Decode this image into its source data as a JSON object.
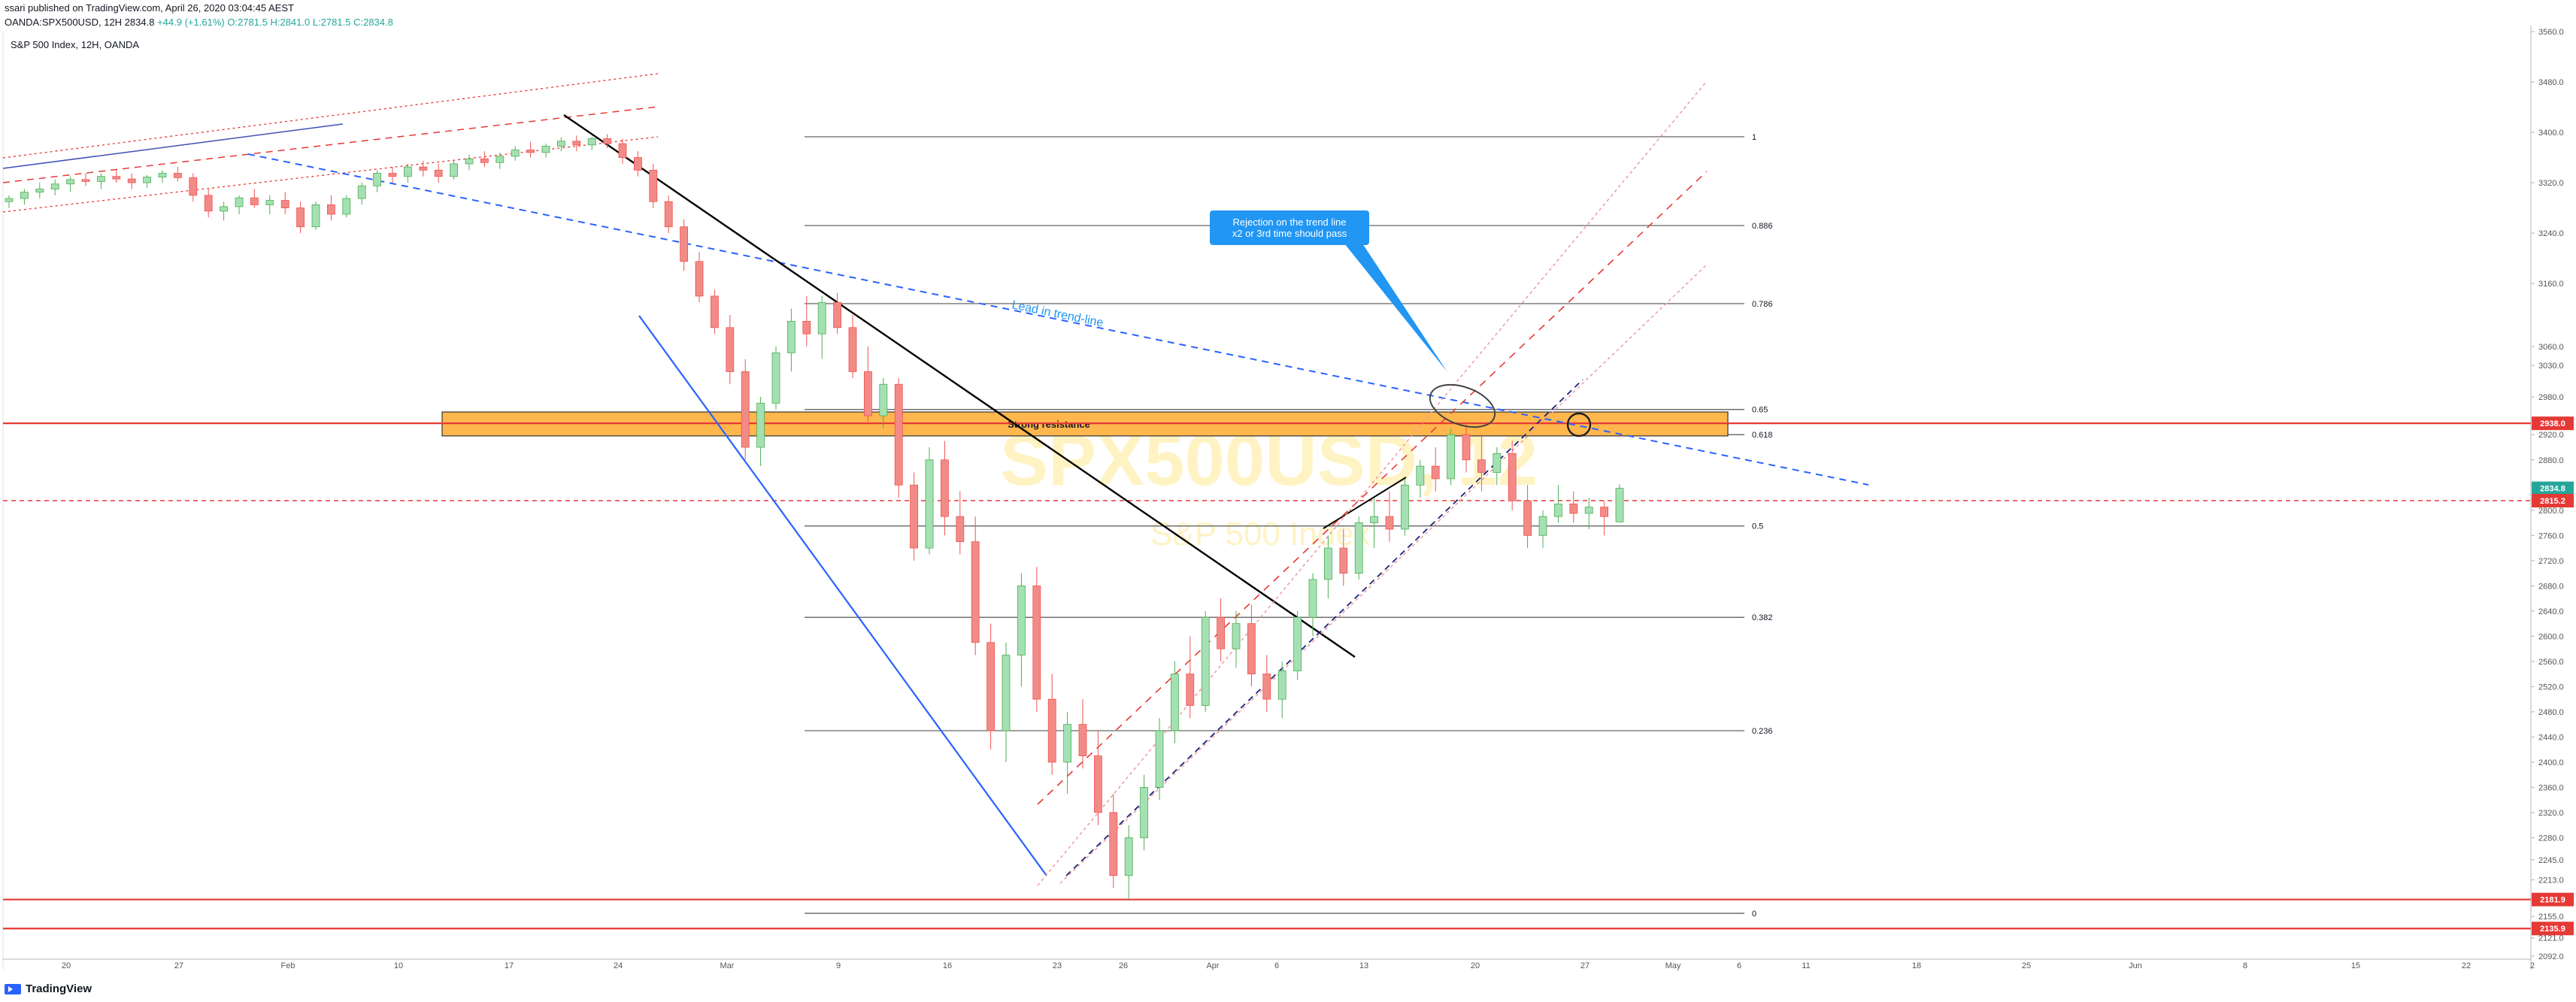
{
  "header": {
    "line1": "ssari published on TradingView.com, April 26, 2020 03:04:45 AEST",
    "symbol": "OANDA:SPX500USD, 12H",
    "last": "2834.8",
    "change": "+44.9 (+1.61%)",
    "o": "O:2781.5",
    "h": "H:2841.0",
    "l": "L:2781.5",
    "c": "C:2834.8"
  },
  "chart_title": "S&P 500 Index, 12H, OANDA",
  "watermark": {
    "symbol": "SPX500USD, 12",
    "name": "S&P 500 Index"
  },
  "footer": {
    "brand": "TradingView"
  },
  "colors": {
    "up": "#26a69a",
    "up_fill": "#a5e0b4",
    "down": "#ef5350",
    "down_fill": "#f28b88",
    "resistance": "#ffb74d",
    "red_line": "#e53935",
    "blue_line": "#2962ff",
    "annotation": "#2196f3"
  },
  "chart_data": {
    "type": "candlestick",
    "ylim": [
      2092,
      3560
    ],
    "y_ticks": [
      3560,
      3480,
      3400,
      3320,
      3240,
      3160,
      3060,
      3030,
      2980,
      2920,
      2880,
      2840,
      2800,
      2760,
      2720,
      2680,
      2640,
      2600,
      2560,
      2520,
      2480,
      2440,
      2400,
      2360,
      2320,
      2280,
      2245,
      2213,
      2185,
      2155,
      2121,
      2092
    ],
    "y_tick_labels": [
      "3560.0",
      "3480.0",
      "3400.0",
      "3320.0",
      "3240.0",
      "3160.0",
      "3060.0",
      "3030.0",
      "2980.0",
      "2920.0",
      "2880.0",
      "2840.0",
      "2800.0",
      "2760.0",
      "2720.0",
      "2680.0",
      "2640.0",
      "2600.0",
      "2560.0",
      "2520.0",
      "2480.0",
      "2440.0",
      "2400.0",
      "2360.0",
      "2320.0",
      "2280.0",
      "2245.0",
      "2213.0",
      "2185.0",
      "2155.0",
      "2121.0",
      "2092.0"
    ],
    "x_ticks": [
      "20",
      "27",
      "Feb",
      "10",
      "17",
      "24",
      "Mar",
      "9",
      "16",
      "23",
      "26",
      "Apr",
      "6",
      "13",
      "20",
      "27",
      "May",
      "6",
      "11",
      "18",
      "25",
      "Jun",
      "8",
      "15",
      "22",
      "2"
    ],
    "price_labels": [
      {
        "value": 2938.0,
        "label": "2938.0",
        "color": "#e53935"
      },
      {
        "value": 2834.8,
        "label": "2834.8",
        "color": "#26a69a"
      },
      {
        "value": 2815.2,
        "label": "2815.2",
        "color": "#e53935"
      },
      {
        "value": 2181.9,
        "label": "2181.9",
        "color": "#e53935"
      },
      {
        "value": 2135.9,
        "label": "2135.9",
        "color": "#e53935"
      }
    ],
    "fibonacci": [
      {
        "level": "1",
        "value": 3393
      },
      {
        "level": "0.886",
        "value": 3252
      },
      {
        "level": "0.786",
        "value": 3128
      },
      {
        "level": "0.65",
        "value": 2960
      },
      {
        "level": "0.618",
        "value": 2920
      },
      {
        "level": "0.5",
        "value": 2775
      },
      {
        "level": "0.382",
        "value": 2630
      },
      {
        "level": "0.236",
        "value": 2450
      },
      {
        "level": "0",
        "value": 2160
      }
    ],
    "horizontal_lines": [
      2938.0,
      2181.9,
      2135.9
    ],
    "dashed_line": 2815.2,
    "resistance_zone": {
      "label": "Strong resistance",
      "from": 2918,
      "to": 2956
    },
    "annotations": {
      "trendline_label": "Lead in trend-line",
      "callout_line1": "Rejection on the trend line",
      "callout_line2": "x2 or 3rd time should pass"
    },
    "candles": [
      [
        3290,
        3300,
        3280,
        3295
      ],
      [
        3295,
        3310,
        3285,
        3305
      ],
      [
        3305,
        3320,
        3295,
        3310
      ],
      [
        3310,
        3325,
        3300,
        3318
      ],
      [
        3318,
        3330,
        3305,
        3325
      ],
      [
        3325,
        3335,
        3315,
        3322
      ],
      [
        3322,
        3335,
        3310,
        3330
      ],
      [
        3330,
        3340,
        3320,
        3326
      ],
      [
        3326,
        3335,
        3310,
        3320
      ],
      [
        3320,
        3332,
        3312,
        3329
      ],
      [
        3329,
        3340,
        3320,
        3335
      ],
      [
        3335,
        3345,
        3322,
        3328
      ],
      [
        3328,
        3335,
        3290,
        3300
      ],
      [
        3300,
        3310,
        3265,
        3275
      ],
      [
        3275,
        3290,
        3260,
        3282
      ],
      [
        3282,
        3300,
        3270,
        3296
      ],
      [
        3296,
        3310,
        3280,
        3285
      ],
      [
        3285,
        3300,
        3270,
        3292
      ],
      [
        3292,
        3305,
        3270,
        3280
      ],
      [
        3280,
        3290,
        3240,
        3250
      ],
      [
        3250,
        3290,
        3245,
        3285
      ],
      [
        3285,
        3300,
        3260,
        3270
      ],
      [
        3270,
        3300,
        3265,
        3295
      ],
      [
        3295,
        3320,
        3285,
        3315
      ],
      [
        3315,
        3340,
        3305,
        3335
      ],
      [
        3335,
        3345,
        3320,
        3330
      ],
      [
        3330,
        3350,
        3320,
        3345
      ],
      [
        3345,
        3355,
        3330,
        3340
      ],
      [
        3340,
        3350,
        3320,
        3330
      ],
      [
        3330,
        3355,
        3325,
        3350
      ],
      [
        3350,
        3365,
        3340,
        3358
      ],
      [
        3358,
        3370,
        3345,
        3352
      ],
      [
        3352,
        3368,
        3342,
        3362
      ],
      [
        3362,
        3378,
        3355,
        3372
      ],
      [
        3372,
        3385,
        3360,
        3368
      ],
      [
        3368,
        3382,
        3360,
        3378
      ],
      [
        3378,
        3392,
        3370,
        3386
      ],
      [
        3386,
        3395,
        3370,
        3380
      ],
      [
        3380,
        3393,
        3372,
        3390
      ],
      [
        3390,
        3397,
        3375,
        3382
      ],
      [
        3382,
        3390,
        3350,
        3360
      ],
      [
        3360,
        3370,
        3330,
        3340
      ],
      [
        3340,
        3350,
        3280,
        3290
      ],
      [
        3290,
        3300,
        3240,
        3250
      ],
      [
        3250,
        3262,
        3180,
        3195
      ],
      [
        3195,
        3210,
        3130,
        3140
      ],
      [
        3140,
        3150,
        3080,
        3090
      ],
      [
        3090,
        3110,
        3000,
        3020
      ],
      [
        3020,
        3040,
        2880,
        2900
      ],
      [
        2900,
        2980,
        2870,
        2970
      ],
      [
        2970,
        3060,
        2960,
        3050
      ],
      [
        3050,
        3120,
        3020,
        3100
      ],
      [
        3100,
        3140,
        3060,
        3080
      ],
      [
        3080,
        3140,
        3040,
        3130
      ],
      [
        3130,
        3145,
        3080,
        3090
      ],
      [
        3090,
        3110,
        3010,
        3020
      ],
      [
        3020,
        3060,
        2940,
        2950
      ],
      [
        2950,
        3010,
        2930,
        3000
      ],
      [
        3000,
        3010,
        2820,
        2840
      ],
      [
        2840,
        2860,
        2720,
        2740
      ],
      [
        2740,
        2900,
        2730,
        2880
      ],
      [
        2880,
        2910,
        2760,
        2790
      ],
      [
        2790,
        2830,
        2730,
        2750
      ],
      [
        2750,
        2790,
        2570,
        2590
      ],
      [
        2590,
        2620,
        2420,
        2450
      ],
      [
        2450,
        2590,
        2400,
        2570
      ],
      [
        2570,
        2700,
        2520,
        2680
      ],
      [
        2680,
        2710,
        2480,
        2500
      ],
      [
        2500,
        2540,
        2380,
        2400
      ],
      [
        2400,
        2480,
        2350,
        2460
      ],
      [
        2460,
        2500,
        2390,
        2410
      ],
      [
        2410,
        2450,
        2300,
        2320
      ],
      [
        2320,
        2350,
        2200,
        2220
      ],
      [
        2220,
        2300,
        2180,
        2280
      ],
      [
        2280,
        2380,
        2260,
        2360
      ],
      [
        2360,
        2470,
        2340,
        2450
      ],
      [
        2450,
        2560,
        2430,
        2540
      ],
      [
        2540,
        2600,
        2470,
        2490
      ],
      [
        2490,
        2640,
        2480,
        2630
      ],
      [
        2630,
        2660,
        2560,
        2580
      ],
      [
        2580,
        2640,
        2550,
        2620
      ],
      [
        2620,
        2650,
        2520,
        2540
      ],
      [
        2540,
        2570,
        2480,
        2500
      ],
      [
        2500,
        2560,
        2470,
        2545
      ],
      [
        2545,
        2640,
        2530,
        2630
      ],
      [
        2630,
        2700,
        2600,
        2690
      ],
      [
        2690,
        2760,
        2660,
        2740
      ],
      [
        2740,
        2770,
        2680,
        2700
      ],
      [
        2700,
        2790,
        2690,
        2780
      ],
      [
        2780,
        2820,
        2740,
        2790
      ],
      [
        2790,
        2830,
        2750,
        2770
      ],
      [
        2770,
        2850,
        2760,
        2840
      ],
      [
        2840,
        2880,
        2820,
        2870
      ],
      [
        2870,
        2900,
        2830,
        2850
      ],
      [
        2850,
        2930,
        2840,
        2920
      ],
      [
        2920,
        2940,
        2860,
        2880
      ],
      [
        2880,
        2920,
        2830,
        2860
      ],
      [
        2860,
        2900,
        2840,
        2890
      ],
      [
        2890,
        2910,
        2800,
        2815
      ],
      [
        2815,
        2840,
        2740,
        2760
      ],
      [
        2760,
        2800,
        2740,
        2790
      ],
      [
        2790,
        2840,
        2780,
        2810
      ],
      [
        2810,
        2830,
        2780,
        2795
      ],
      [
        2795,
        2820,
        2770,
        2805
      ],
      [
        2805,
        2815,
        2760,
        2790
      ],
      [
        2781.5,
        2841,
        2781.5,
        2834.8
      ]
    ]
  }
}
